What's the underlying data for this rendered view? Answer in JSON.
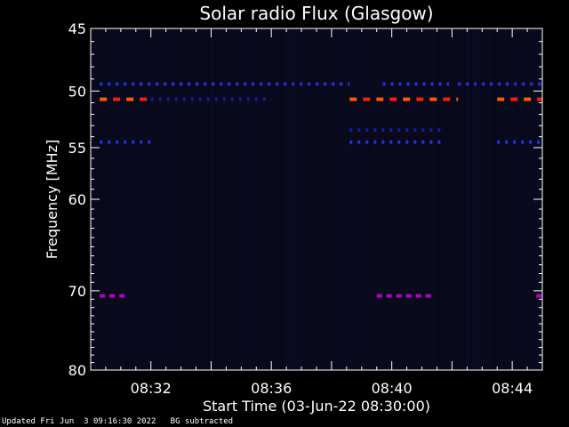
{
  "chart_data": {
    "type": "heatmap",
    "title": "Solar radio Flux (Glasgow)",
    "xlabel": "Start Time (03-Jun-22 08:30:00)",
    "ylabel": "Frequency [MHz]",
    "x_range_minutes": [
      0,
      15
    ],
    "y_range_mhz": [
      45,
      80
    ],
    "x_ticks": [
      {
        "minute": 2,
        "label": "08:32"
      },
      {
        "minute": 6,
        "label": "08:36"
      },
      {
        "minute": 10,
        "label": "08:40"
      },
      {
        "minute": 14,
        "label": "08:44"
      }
    ],
    "y_ticks": [
      {
        "mhz": 45,
        "label": "45"
      },
      {
        "mhz": 50,
        "label": "50"
      },
      {
        "mhz": 55,
        "label": "55"
      },
      {
        "mhz": 60,
        "label": "60"
      },
      {
        "mhz": 70,
        "label": "70"
      },
      {
        "mhz": 80,
        "label": "80"
      }
    ],
    "colors": {
      "background": "#070818",
      "weak": "#1a1aa0",
      "medium": "#2a2ae0",
      "strong": "#ff5a00",
      "strong_alt": "#ff1a10",
      "purple": "#b000c8"
    },
    "bands": [
      {
        "mhz": 49.4,
        "intensity": "medium",
        "segments": [
          [
            0.3,
            8.6
          ],
          [
            9.7,
            11.9
          ],
          [
            12.2,
            15
          ]
        ]
      },
      {
        "mhz": 50.7,
        "intensity": "strong",
        "segments": [
          [
            0.3,
            2.0
          ],
          [
            8.6,
            12.2
          ],
          [
            13.5,
            15
          ]
        ]
      },
      {
        "mhz": 50.7,
        "intensity": "weak",
        "segments": [
          [
            2.0,
            6.0
          ]
        ]
      },
      {
        "mhz": 53.4,
        "intensity": "weak",
        "segments": [
          [
            8.6,
            11.7
          ]
        ]
      },
      {
        "mhz": 54.5,
        "intensity": "medium",
        "segments": [
          [
            0.3,
            2.0
          ],
          [
            8.6,
            11.7
          ],
          [
            13.5,
            15
          ]
        ]
      },
      {
        "mhz": 70.6,
        "intensity": "purple",
        "segments": [
          [
            0.3,
            1.2
          ],
          [
            9.5,
            11.4
          ],
          [
            14.8,
            15
          ]
        ]
      }
    ]
  },
  "footer": {
    "updated": "Updated Fri Jun  3 09:16:30 2022   BG subtracted"
  }
}
